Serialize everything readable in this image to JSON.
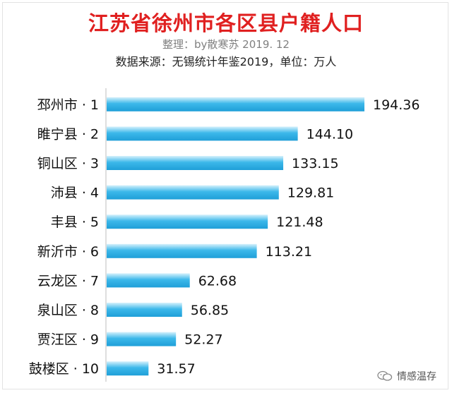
{
  "chart_data": {
    "type": "bar",
    "orientation": "horizontal",
    "title": "江苏省徐州市各区县户籍人口",
    "subtitle": "整理：by散寒苏 2019. 12",
    "source": "数据来源：无锡统计年鉴2019，单位：万人",
    "categories": [
      "邳州市 · 1",
      "睢宁县 · 2",
      "铜山区 · 3",
      "沛县 · 4",
      "丰县 · 5",
      "新沂市 · 6",
      "云龙区 · 7",
      "泉山区 · 8",
      "贾汪区 · 9",
      "鼓楼区 · 10"
    ],
    "values": [
      194.36,
      144.1,
      133.15,
      129.81,
      121.48,
      113.21,
      62.68,
      56.85,
      52.27,
      31.57
    ],
    "value_labels": [
      "194.36",
      "144.10",
      "133.15",
      "129.81",
      "121.48",
      "113.21",
      "62.68",
      "56.85",
      "52.27",
      "31.57"
    ],
    "xlim": [
      0,
      194.36
    ],
    "grid": false,
    "bar_color": "#29aee6"
  },
  "watermark": {
    "text": "情感温存",
    "icon": "wechat-icon"
  }
}
